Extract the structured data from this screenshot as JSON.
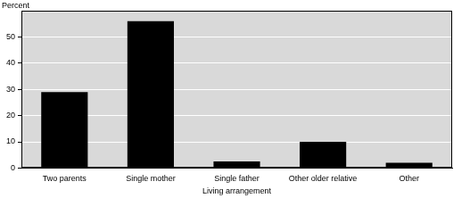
{
  "chart_data": {
    "type": "bar",
    "ylabel": "Percent",
    "xlabel": "Living arrangement",
    "categories": [
      "Two parents",
      "Single mother",
      "Single father",
      "Other older relative",
      "Other"
    ],
    "values": [
      29,
      56,
      2.5,
      10,
      2
    ],
    "color": "#000000",
    "ylim": [
      0,
      60
    ],
    "yticks": [
      0,
      10,
      20,
      30,
      40,
      50
    ],
    "grid": true
  }
}
